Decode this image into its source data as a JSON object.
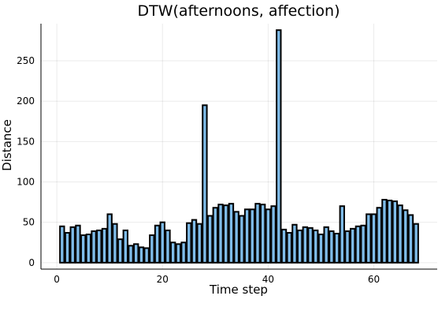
{
  "chart_data": {
    "type": "bar",
    "title": "DTW(afternoons, affection)",
    "xlabel": "Time step",
    "ylabel": "Distance",
    "xlim": [
      -3,
      72
    ],
    "ylim": [
      -8,
      296
    ],
    "xticks": [
      0,
      20,
      40,
      60
    ],
    "yticks": [
      0,
      50,
      100,
      150,
      200,
      250
    ],
    "grid": true,
    "bar_color": "#7fbce9",
    "bar_width": 0.8,
    "x": [
      1,
      2,
      3,
      4,
      5,
      6,
      7,
      8,
      9,
      10,
      11,
      12,
      13,
      14,
      15,
      16,
      17,
      18,
      19,
      20,
      21,
      22,
      23,
      24,
      25,
      26,
      27,
      28,
      29,
      30,
      31,
      32,
      33,
      34,
      35,
      36,
      37,
      38,
      39,
      40,
      41,
      42,
      43,
      44,
      45,
      46,
      47,
      48,
      49,
      50,
      51,
      52,
      53,
      54,
      55,
      56,
      57,
      58,
      59,
      60,
      61,
      62,
      63,
      64,
      65,
      66,
      67,
      68
    ],
    "values": [
      45,
      37,
      44,
      46,
      34,
      35,
      39,
      40,
      42,
      60,
      48,
      29,
      40,
      21,
      23,
      19,
      18,
      34,
      46,
      50,
      40,
      25,
      23,
      25,
      49,
      53,
      48,
      195,
      58,
      68,
      72,
      71,
      73,
      63,
      58,
      66,
      66,
      73,
      72,
      66,
      70,
      288,
      41,
      37,
      47,
      40,
      44,
      43,
      40,
      35,
      44,
      39,
      36,
      70,
      39,
      42,
      45,
      46,
      60,
      60,
      68,
      78,
      77,
      76,
      71,
      65,
      59,
      48
    ]
  }
}
